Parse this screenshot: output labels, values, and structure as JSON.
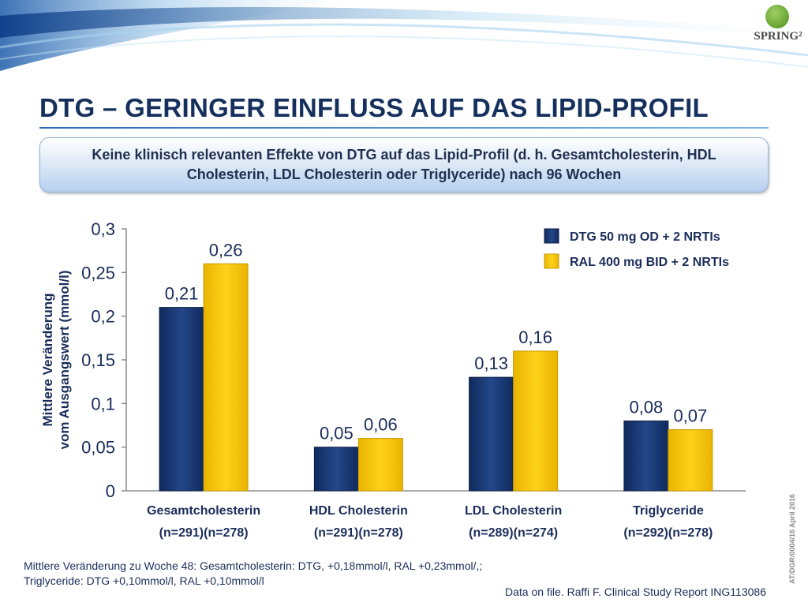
{
  "header": {
    "title": "DTG – GERINGER EINFLUSS AUF DAS LIPID-PROFIL",
    "logo_text": "SPRING²"
  },
  "callout": {
    "text": "Keine klinisch relevanten Effekte von DTG auf das Lipid-Profil (d. h. Gesamtcholesterin, HDL Cholesterin, LDL Cholesterin oder Triglyceride) nach 96 Wochen"
  },
  "chart_data": {
    "type": "bar",
    "ylabel_line1": "Mittlere Veränderung",
    "ylabel_line2": "vom Ausgangswert (mmol/l)",
    "ylim": [
      0,
      0.3
    ],
    "y_ticks": [
      {
        "value": 0,
        "label": "0"
      },
      {
        "value": 0.05,
        "label": "0,05"
      },
      {
        "value": 0.1,
        "label": "0,1"
      },
      {
        "value": 0.15,
        "label": "0,15"
      },
      {
        "value": 0.2,
        "label": "0,2"
      },
      {
        "value": 0.25,
        "label": "0,25"
      },
      {
        "value": 0.3,
        "label": "0,3"
      }
    ],
    "categories": [
      "Gesamtcholesterin",
      "HDL Cholesterin",
      "LDL Cholesterin",
      "Triglyceride"
    ],
    "category_sublabels": [
      "(n=291)(n=278)",
      "(n=291)(n=278)",
      "(n=289)(n=274)",
      "(n=292)(n=278)"
    ],
    "series": [
      {
        "name": "DTG 50 mg OD + 2 NRTIs",
        "color": "#1b3b78",
        "values": [
          0.21,
          0.05,
          0.13,
          0.08
        ],
        "labels": [
          "0,21",
          "0,05",
          "0,13",
          "0,08"
        ]
      },
      {
        "name": "RAL 400 mg BID + 2 NRTIs",
        "color": "#f7c600",
        "values": [
          0.26,
          0.06,
          0.16,
          0.07
        ],
        "labels": [
          "0,26",
          "0,06",
          "0,16",
          "0,07"
        ]
      }
    ],
    "legend_position": "top-right",
    "grid": false
  },
  "footnote": {
    "line1": "Mittlere Veränderung zu Woche 48: Gesamtcholesterin: DTG, +0,18mmol/l, RAL +0,23mmol/,;",
    "line2": "Triglyceride: DTG  +0,10mmol/l, RAL +0,10mmol/l"
  },
  "source": "Data on file. Raffi F. Clinical Study Report ING113086",
  "side_code": "AT/DGR/0004/16  April 2016"
}
